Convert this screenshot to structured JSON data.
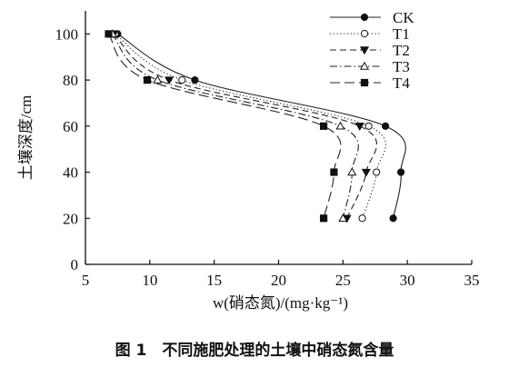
{
  "chart_data": {
    "type": "line",
    "orientation": "x-value-vs-depth",
    "caption": "图 1　不同施肥处理的土壤中硝态氮含量",
    "xlabel": "w(硝态氮)/(mg·kg⁻¹)",
    "ylabel": "土壤深度/cm",
    "xlim": [
      5,
      35
    ],
    "ylim": [
      0,
      110
    ],
    "x_ticks": [
      5,
      10,
      15,
      20,
      25,
      30,
      35
    ],
    "y_ticks": [
      0,
      20,
      40,
      60,
      80,
      100
    ],
    "legend_position": "top-right",
    "grid": false,
    "series": [
      {
        "name": "CK",
        "marker": "filled-circle",
        "dash": "solid",
        "points": [
          {
            "x": 7.5,
            "y": 100
          },
          {
            "x": 13.5,
            "y": 80
          },
          {
            "x": 28.3,
            "y": 60
          },
          {
            "x": 29.5,
            "y": 40
          },
          {
            "x": 28.9,
            "y": 20
          }
        ]
      },
      {
        "name": "T1",
        "marker": "open-circle",
        "dash": "dotted",
        "points": [
          {
            "x": 7.3,
            "y": 100
          },
          {
            "x": 12.5,
            "y": 80
          },
          {
            "x": 27.0,
            "y": 60
          },
          {
            "x": 27.6,
            "y": 40
          },
          {
            "x": 26.5,
            "y": 20
          }
        ]
      },
      {
        "name": "T2",
        "marker": "filled-triangle-down",
        "dash": "dashed",
        "points": [
          {
            "x": 7.2,
            "y": 100
          },
          {
            "x": 11.5,
            "y": 80
          },
          {
            "x": 26.3,
            "y": 60
          },
          {
            "x": 26.8,
            "y": 40
          },
          {
            "x": 25.3,
            "y": 20
          }
        ]
      },
      {
        "name": "T3",
        "marker": "open-triangle-up",
        "dash": "dash-dot",
        "points": [
          {
            "x": 7.1,
            "y": 100
          },
          {
            "x": 10.6,
            "y": 80
          },
          {
            "x": 24.8,
            "y": 60
          },
          {
            "x": 25.7,
            "y": 40
          },
          {
            "x": 25.0,
            "y": 20
          }
        ]
      },
      {
        "name": "T4",
        "marker": "filled-square",
        "dash": "long-dash",
        "points": [
          {
            "x": 6.8,
            "y": 100
          },
          {
            "x": 9.8,
            "y": 80
          },
          {
            "x": 23.5,
            "y": 60
          },
          {
            "x": 24.3,
            "y": 40
          },
          {
            "x": 23.5,
            "y": 20
          }
        ]
      }
    ]
  }
}
